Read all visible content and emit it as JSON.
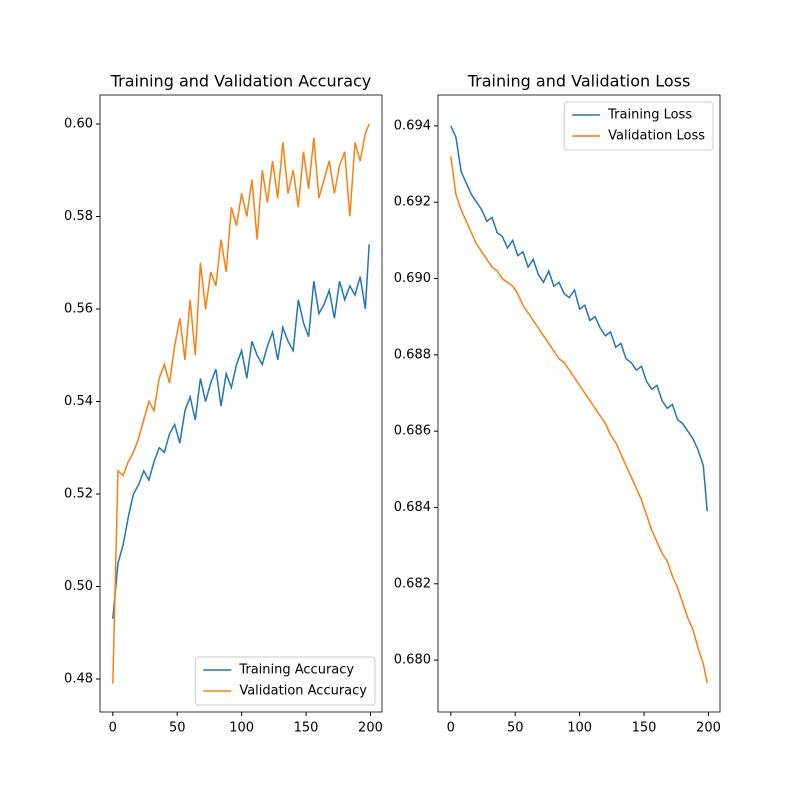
{
  "chart_data": [
    {
      "type": "line",
      "title": "Training and Validation Accuracy",
      "x": [
        0,
        4,
        8,
        12,
        16,
        20,
        24,
        28,
        32,
        36,
        40,
        44,
        48,
        52,
        56,
        60,
        64,
        68,
        72,
        76,
        80,
        84,
        88,
        92,
        96,
        100,
        104,
        108,
        112,
        116,
        120,
        124,
        128,
        132,
        136,
        140,
        144,
        148,
        152,
        156,
        160,
        164,
        168,
        172,
        176,
        180,
        184,
        188,
        192,
        196,
        199
      ],
      "series": [
        {
          "name": "Training Accuracy",
          "color": "#1f77b4",
          "values": [
            0.493,
            0.505,
            0.509,
            0.515,
            0.52,
            0.522,
            0.525,
            0.523,
            0.527,
            0.53,
            0.529,
            0.533,
            0.535,
            0.531,
            0.538,
            0.541,
            0.536,
            0.545,
            0.54,
            0.544,
            0.547,
            0.539,
            0.546,
            0.543,
            0.548,
            0.551,
            0.545,
            0.553,
            0.55,
            0.548,
            0.552,
            0.555,
            0.549,
            0.556,
            0.553,
            0.551,
            0.562,
            0.557,
            0.554,
            0.566,
            0.559,
            0.561,
            0.564,
            0.558,
            0.566,
            0.562,
            0.565,
            0.563,
            0.567,
            0.56,
            0.574
          ]
        },
        {
          "name": "Validation Accuracy",
          "color": "#ff7f0e",
          "values": [
            0.479,
            0.525,
            0.524,
            0.527,
            0.529,
            0.532,
            0.536,
            0.54,
            0.538,
            0.545,
            0.548,
            0.544,
            0.552,
            0.558,
            0.549,
            0.562,
            0.55,
            0.57,
            0.56,
            0.568,
            0.565,
            0.575,
            0.568,
            0.582,
            0.578,
            0.585,
            0.58,
            0.588,
            0.575,
            0.59,
            0.583,
            0.592,
            0.584,
            0.596,
            0.585,
            0.59,
            0.582,
            0.594,
            0.586,
            0.597,
            0.584,
            0.588,
            0.592,
            0.585,
            0.591,
            0.594,
            0.58,
            0.596,
            0.592,
            0.598,
            0.6
          ]
        }
      ],
      "xlim": [
        -9.95,
        208.95
      ],
      "xticks": [
        0,
        50,
        100,
        150,
        200
      ],
      "ylim": [
        0.47286,
        0.60627
      ],
      "yticks": [
        {
          "value": 0.48,
          "label": "0.48"
        },
        {
          "value": 0.5,
          "label": "0.50"
        },
        {
          "value": 0.52,
          "label": "0.52"
        },
        {
          "value": 0.54,
          "label": "0.54"
        },
        {
          "value": 0.56,
          "label": "0.56"
        },
        {
          "value": 0.58,
          "label": "0.58"
        },
        {
          "value": 0.6,
          "label": "0.60"
        }
      ],
      "legend": "lower right"
    },
    {
      "type": "line",
      "title": "Training and Validation Loss",
      "x": [
        0,
        4,
        8,
        12,
        16,
        20,
        24,
        28,
        32,
        36,
        40,
        44,
        48,
        52,
        56,
        60,
        64,
        68,
        72,
        76,
        80,
        84,
        88,
        92,
        96,
        100,
        104,
        108,
        112,
        116,
        120,
        124,
        128,
        132,
        136,
        140,
        144,
        148,
        152,
        156,
        160,
        164,
        168,
        172,
        176,
        180,
        184,
        188,
        192,
        196,
        199
      ],
      "series": [
        {
          "name": "Training Loss",
          "color": "#1f77b4",
          "values": [
            0.694,
            0.6937,
            0.6928,
            0.6925,
            0.6922,
            0.692,
            0.6918,
            0.6915,
            0.6916,
            0.6912,
            0.6911,
            0.6908,
            0.691,
            0.6906,
            0.6907,
            0.6903,
            0.6905,
            0.6901,
            0.6899,
            0.6902,
            0.6898,
            0.6899,
            0.6896,
            0.6895,
            0.6897,
            0.6892,
            0.6893,
            0.6889,
            0.689,
            0.6887,
            0.6885,
            0.6886,
            0.6882,
            0.6883,
            0.6879,
            0.6878,
            0.6876,
            0.6877,
            0.6873,
            0.6871,
            0.6872,
            0.6868,
            0.6866,
            0.6867,
            0.6863,
            0.6862,
            0.686,
            0.6858,
            0.6855,
            0.6851,
            0.6839
          ]
        },
        {
          "name": "Validation Loss",
          "color": "#ff7f0e",
          "values": [
            0.6932,
            0.6922,
            0.6918,
            0.6915,
            0.6912,
            0.6909,
            0.6907,
            0.6905,
            0.6903,
            0.6902,
            0.69,
            0.6899,
            0.6898,
            0.6896,
            0.6893,
            0.6891,
            0.6889,
            0.6887,
            0.6885,
            0.6883,
            0.6881,
            0.6879,
            0.6878,
            0.6876,
            0.6874,
            0.6872,
            0.687,
            0.6868,
            0.6866,
            0.6864,
            0.6862,
            0.6859,
            0.6857,
            0.6854,
            0.6851,
            0.6848,
            0.6845,
            0.6842,
            0.6838,
            0.6834,
            0.6831,
            0.6828,
            0.6826,
            0.6822,
            0.6819,
            0.6815,
            0.6811,
            0.6808,
            0.6803,
            0.6799,
            0.6794
          ]
        }
      ],
      "xlim": [
        -9.95,
        208.95
      ],
      "xticks": [
        0,
        50,
        100,
        150,
        200
      ],
      "ylim": [
        0.67864,
        0.69481
      ],
      "yticks": [
        {
          "value": 0.68,
          "label": "0.680"
        },
        {
          "value": 0.682,
          "label": "0.682"
        },
        {
          "value": 0.684,
          "label": "0.684"
        },
        {
          "value": 0.686,
          "label": "0.686"
        },
        {
          "value": 0.688,
          "label": "0.688"
        },
        {
          "value": 0.69,
          "label": "0.690"
        },
        {
          "value": 0.692,
          "label": "0.692"
        },
        {
          "value": 0.694,
          "label": "0.694"
        }
      ],
      "legend": "upper right"
    }
  ]
}
